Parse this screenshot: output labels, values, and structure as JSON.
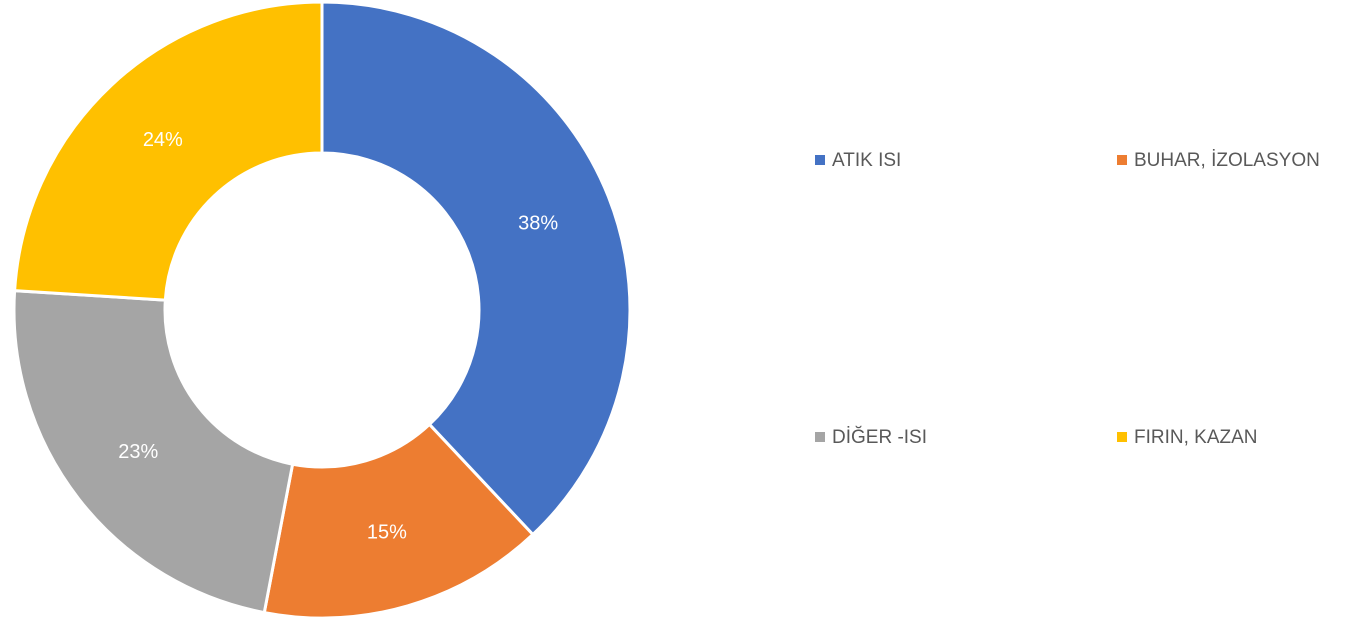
{
  "chart_data": {
    "type": "pie",
    "categories": [
      "ATIK ISI",
      "BUHAR, İZOLASYON",
      "DİĞER -ISI",
      "FIRIN, KAZAN"
    ],
    "values": [
      38,
      15,
      23,
      24
    ],
    "value_labels": [
      "38%",
      "15%",
      "23%",
      "24%"
    ],
    "colors": [
      "#4472c4",
      "#ed7d31",
      "#a5a5a5",
      "#ffc000"
    ],
    "donut": true,
    "legend": "right"
  }
}
